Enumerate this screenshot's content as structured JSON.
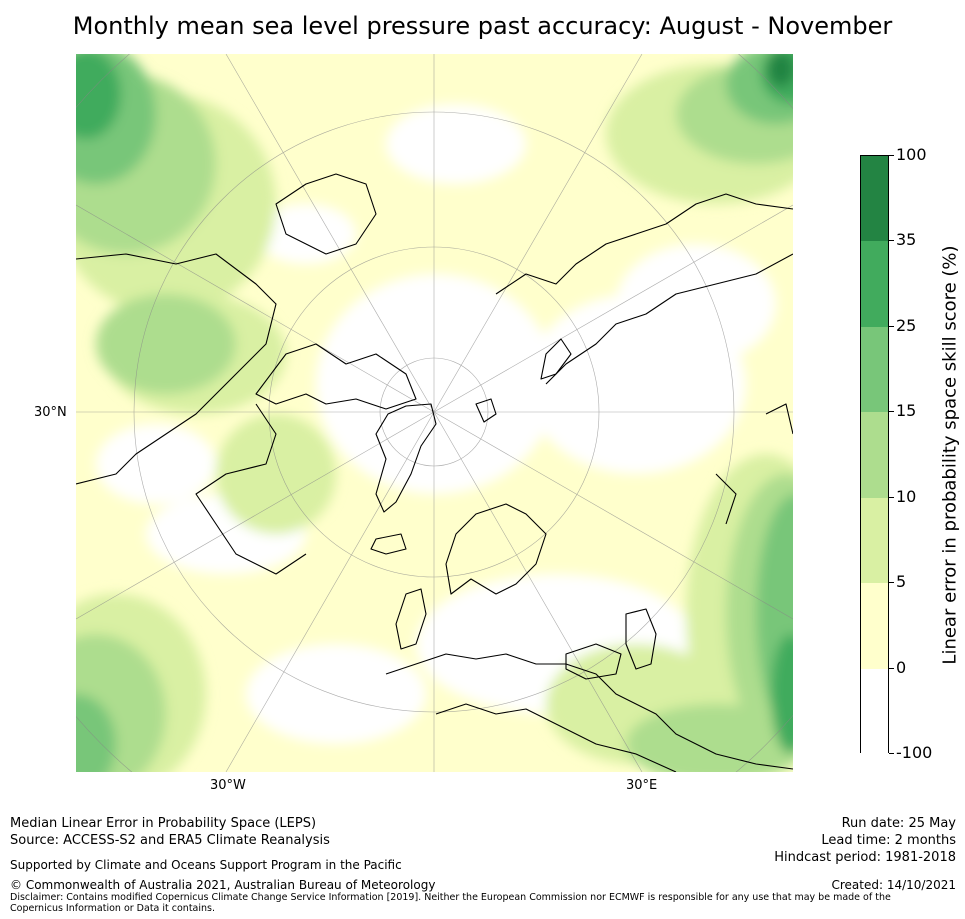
{
  "title": "Monthly mean sea level pressure past accuracy: August - November",
  "map": {
    "lat_labels": [
      "30°N"
    ],
    "lon_labels": [
      "30°W",
      "30°E"
    ]
  },
  "colorbar": {
    "label": "Linear error in probability space skill score (%)",
    "ticks": [
      "-100",
      "0",
      "5",
      "10",
      "15",
      "25",
      "35",
      "100"
    ],
    "colors": [
      "#ffffff",
      "#ffffcc",
      "#d9f0a3",
      "#addd8e",
      "#78c679",
      "#41ab5d",
      "#238443"
    ]
  },
  "footer": {
    "left_line1": "Median Linear Error in Probability Space (LEPS)",
    "left_line2": "Source: ACCESS-S2 and ERA5 Climate Reanalysis",
    "support": "Supported by Climate and Oceans Support Program in the Pacific",
    "copyright": "© Commonwealth of Australia 2021, Australian Bureau of Meteorology",
    "disclaimer": "Disclaimer: Contains modified Copernicus Climate Change Service Information [2019]. Neither the European Commission nor ECMWF is responsible for any use that may be made of the Copernicus Information or Data it contains.",
    "run_date": "Run date: 25 May",
    "lead_time": "Lead time: 2 months",
    "hindcast": "Hindcast period: 1981-2018",
    "created": "Created: 14/10/2021"
  }
}
